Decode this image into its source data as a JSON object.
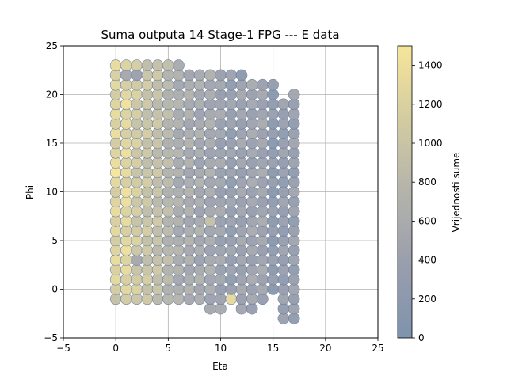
{
  "chart_data": {
    "type": "scatter",
    "title": "Suma outputa 14 Stage-1 FPG --- E data",
    "xlabel": "Eta",
    "ylabel": "Phi",
    "xlim": [
      -5,
      25
    ],
    "ylim": [
      -5,
      25
    ],
    "xticks": [
      "−5",
      "0",
      "5",
      "10",
      "15",
      "20",
      "25"
    ],
    "yticks": [
      "−5",
      "0",
      "5",
      "10",
      "15",
      "20",
      "25"
    ],
    "grid": true,
    "colormap": "cividis",
    "colorbar": {
      "label": "Vrijednosti sume",
      "range": [
        0,
        1500
      ],
      "ticks": [
        "0",
        "200",
        "400",
        "600",
        "800",
        "1000",
        "1200",
        "1400"
      ]
    },
    "columns": [
      {
        "x": 0,
        "y_min": -1,
        "y_max": 23,
        "level": 0.82,
        "highlight": {
          "12": 1.0,
          "13": 0.92,
          "16": 0.92
        }
      },
      {
        "x": 1,
        "y_min": -1,
        "y_max": 23,
        "level": 0.85,
        "highlight": {
          "10": 0.95,
          "19": 0.95,
          "22": 0.35
        }
      },
      {
        "x": 2,
        "y_min": -1,
        "y_max": 23,
        "level": 0.72,
        "highlight": {
          "22": 0.25,
          "3": 0.35
        }
      },
      {
        "x": 3,
        "y_min": -1,
        "y_max": 23,
        "level": 0.66
      },
      {
        "x": 4,
        "y_min": -1,
        "y_max": 23,
        "level": 0.62
      },
      {
        "x": 5,
        "y_min": -1,
        "y_max": 23,
        "level": 0.52
      },
      {
        "x": 6,
        "y_min": -1,
        "y_max": 23,
        "level": 0.42
      },
      {
        "x": 7,
        "y_min": -1,
        "y_max": 22,
        "level": 0.4
      },
      {
        "x": 8,
        "y_min": -1,
        "y_max": 22,
        "level": 0.37
      },
      {
        "x": 9,
        "y_min": -2,
        "y_max": 22,
        "level": 0.36,
        "highlight": {
          "7": 0.62
        }
      },
      {
        "x": 10,
        "y_min": -2,
        "y_max": 22,
        "level": 0.3
      },
      {
        "x": 11,
        "y_min": -1,
        "y_max": 22,
        "level": 0.24,
        "highlight": {
          "-1": 0.88
        }
      },
      {
        "x": 12,
        "y_min": -2,
        "y_max": 22,
        "level": 0.28,
        "highlight": {
          "22": 0.12
        }
      },
      {
        "x": 13,
        "y_min": -2,
        "y_max": 21,
        "level": 0.3
      },
      {
        "x": 14,
        "y_min": -1,
        "y_max": 21,
        "level": 0.3
      },
      {
        "x": 15,
        "y_min": 0,
        "y_max": 21,
        "level": 0.16
      },
      {
        "x": 16,
        "y_min": -3,
        "y_max": 19,
        "level": 0.22
      },
      {
        "x": 17,
        "y_min": -3,
        "y_max": 20,
        "level": 0.24
      }
    ]
  }
}
